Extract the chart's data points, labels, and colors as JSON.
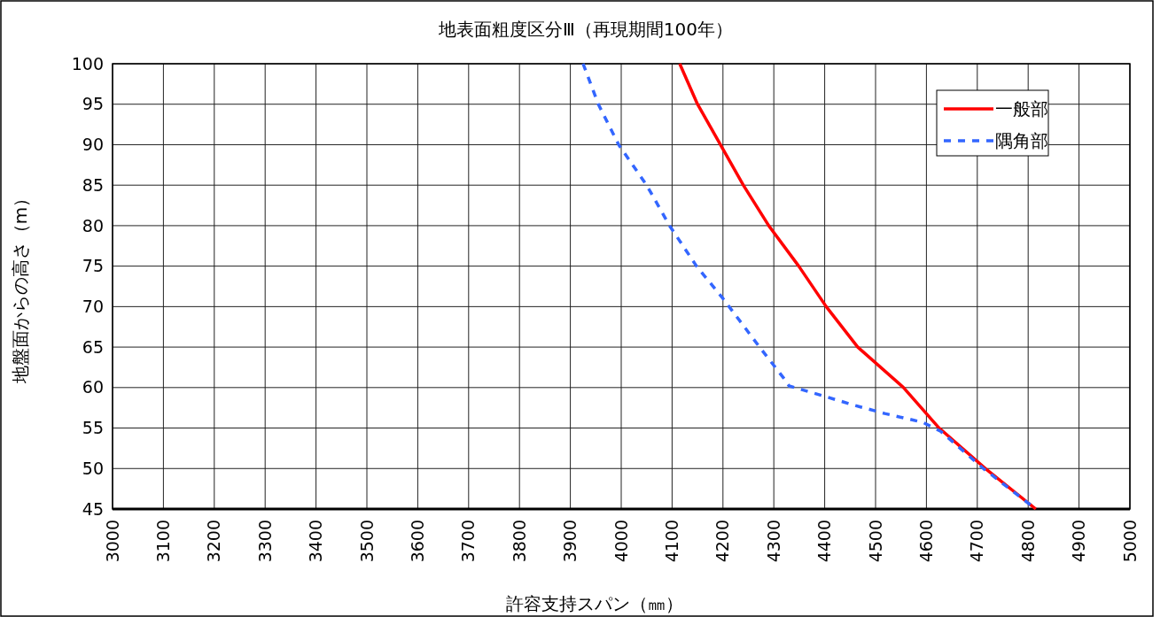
{
  "chart_data": {
    "type": "line",
    "title": "地表面粗度区分Ⅲ（再現期間100年）",
    "xlabel": "許容支持スパン（㎜）",
    "ylabel": "地盤面からの高さ（m）",
    "xlim": [
      3000,
      5000
    ],
    "xticks": [
      3000,
      3100,
      3200,
      3300,
      3400,
      3500,
      3600,
      3700,
      3800,
      3900,
      4000,
      4100,
      4200,
      4300,
      4400,
      4500,
      4600,
      4700,
      4800,
      4900,
      5000
    ],
    "ylim": [
      45,
      100
    ],
    "yticks": [
      45,
      50,
      55,
      60,
      65,
      70,
      75,
      80,
      85,
      90,
      95,
      100
    ],
    "grid": true,
    "legend": "top right",
    "series": [
      {
        "name": "一般部",
        "color": "#ff0000",
        "line_style": "solid",
        "x": [
          4115,
          4150,
          4195,
          4240,
          4290,
          4349,
          4403,
          4465,
          4555,
          4625,
          4716,
          4815
        ],
        "values": [
          100,
          95,
          90,
          85,
          80,
          75,
          70,
          65,
          60,
          55,
          50,
          45
        ]
      },
      {
        "name": "隅角部",
        "color": "#3366ff",
        "line_style": "dashed",
        "x": [
          3925,
          3955,
          3995,
          4050,
          4095,
          4148,
          4200,
          4272,
          4319,
          4330,
          4401,
          4459,
          4518,
          4593,
          4628,
          4712,
          4815
        ],
        "values": [
          100,
          95,
          90,
          85,
          80,
          75,
          71,
          65,
          61.2,
          60.2,
          58.9,
          57.8,
          56.8,
          55.7,
          54.6,
          50,
          45
        ]
      }
    ]
  }
}
